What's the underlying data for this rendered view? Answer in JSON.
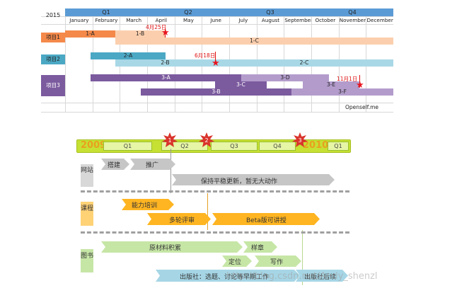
{
  "gantt1": {
    "year": "2015",
    "quarters": [
      "Q1",
      "Q2",
      "Q3",
      "Q4"
    ],
    "months": [
      "January",
      "February",
      "March",
      "April",
      "May",
      "June",
      "July",
      "August",
      "September",
      "October",
      "November",
      "December"
    ],
    "projects": [
      "项目1",
      "项目2",
      "项目3"
    ],
    "bars": [
      {
        "label": "1-A"
      },
      {
        "label": "1-B"
      },
      {
        "label": "1-C"
      },
      {
        "label": "2-A"
      },
      {
        "label": "2-B"
      },
      {
        "label": "2-C"
      },
      {
        "label": "3-A"
      },
      {
        "label": "3-B"
      },
      {
        "label": "3-C"
      },
      {
        "label": "3-D"
      },
      {
        "label": "3-E"
      },
      {
        "label": "3-F"
      }
    ],
    "milestones": [
      "4月25日",
      "6月18日",
      "11月1日"
    ],
    "credit": "Openself.me",
    "colors": {
      "header_blue": "#5b9bd5",
      "project1": "#f4894a",
      "project1_light": "#fbcfae",
      "project2": "#4ba8c4",
      "project2_light": "#a8d8e6",
      "project3": "#7b5a9e",
      "project3_light": "#b39ccc",
      "milestone": "#e8141e"
    }
  },
  "gantt2": {
    "year_start": "2009",
    "quarters": [
      "Q1",
      "Q2",
      "Q3",
      "Q4"
    ],
    "year_end": "2010",
    "quarter_end": "Q1",
    "milestones": [
      "1",
      "2",
      "3"
    ],
    "rows": [
      {
        "label": "网站",
        "tasks": [
          "搭建",
          "推广",
          "保持平稳更新，暂无大动作"
        ]
      },
      {
        "label": "课程",
        "tasks": [
          "能力培训",
          "多轮评审",
          "Beta版可讲授"
        ]
      },
      {
        "label": "图书",
        "tasks": [
          "原材料积累",
          "样章",
          "定位",
          "写作",
          "出版社：选题、讨论等早期工作",
          "出版社后续"
        ]
      }
    ],
    "colors": {
      "timeline_green": "#c6e033",
      "timeline_box": "#e6f5a6",
      "milestone": "#d9342b",
      "grey_arrow": "#c6c6c6",
      "orange_arrow": "#ffb521",
      "green_arrow": "#c6e6a6",
      "blue_arrow": "#a6d6e6"
    }
  },
  "watermark": "http://blog.csdn.net/Andy_shenzl"
}
